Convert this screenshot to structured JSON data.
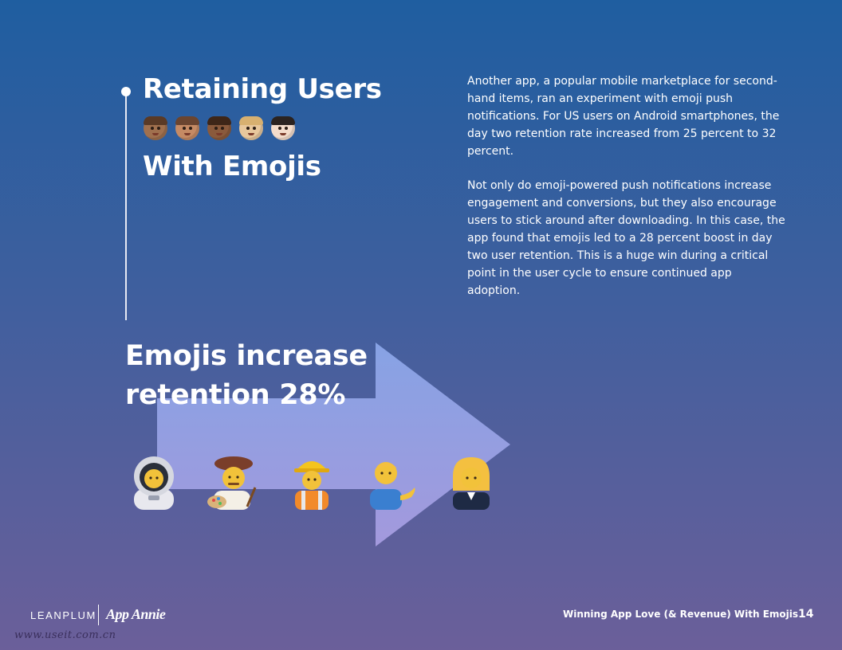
{
  "heading": {
    "line1": "Retaining Users",
    "line2": "With Emojis",
    "emoji_faces": [
      "man-medium-dark-skin-face-icon",
      "woman-medium-skin-face-icon",
      "woman-dark-skin-face-icon",
      "man-light-skin-blond-face-icon",
      "woman-light-skin-face-icon"
    ]
  },
  "body": {
    "paragraph1": "Another app, a popular mobile marketplace for second-hand items, ran an experiment with emoji push notifications. For US users on Android smartphones, the day two retention rate increased from 25 percent to 32 percent.",
    "paragraph2": "Not only do emoji-powered push notifications increase engagement and conversions, but they also encourage users to stick around after downloading. In this case, the app found that emojis led to a 28 percent boost in day two user retention. This is a huge win during a critical point in the user cycle to ensure continued app adoption."
  },
  "stat": {
    "line1": "Emojis increase",
    "line2": "retention 28%"
  },
  "figures": [
    "astronaut-icon",
    "artist-icon",
    "construction-worker-icon",
    "man-tipping-hand-icon",
    "office-worker-icon"
  ],
  "footer": {
    "logo1": "LEANPLUM",
    "logo2": "App Annie",
    "title": "Winning App Love (& Revenue) With Emojis",
    "page": "14"
  },
  "watermark": "www.useit.com.cn",
  "colors": {
    "background_top": "#1f5ea0",
    "background_bottom": "#6b5f9a",
    "arrow_top": "#8aa6e8",
    "arrow_bottom": "#a79ce0"
  }
}
